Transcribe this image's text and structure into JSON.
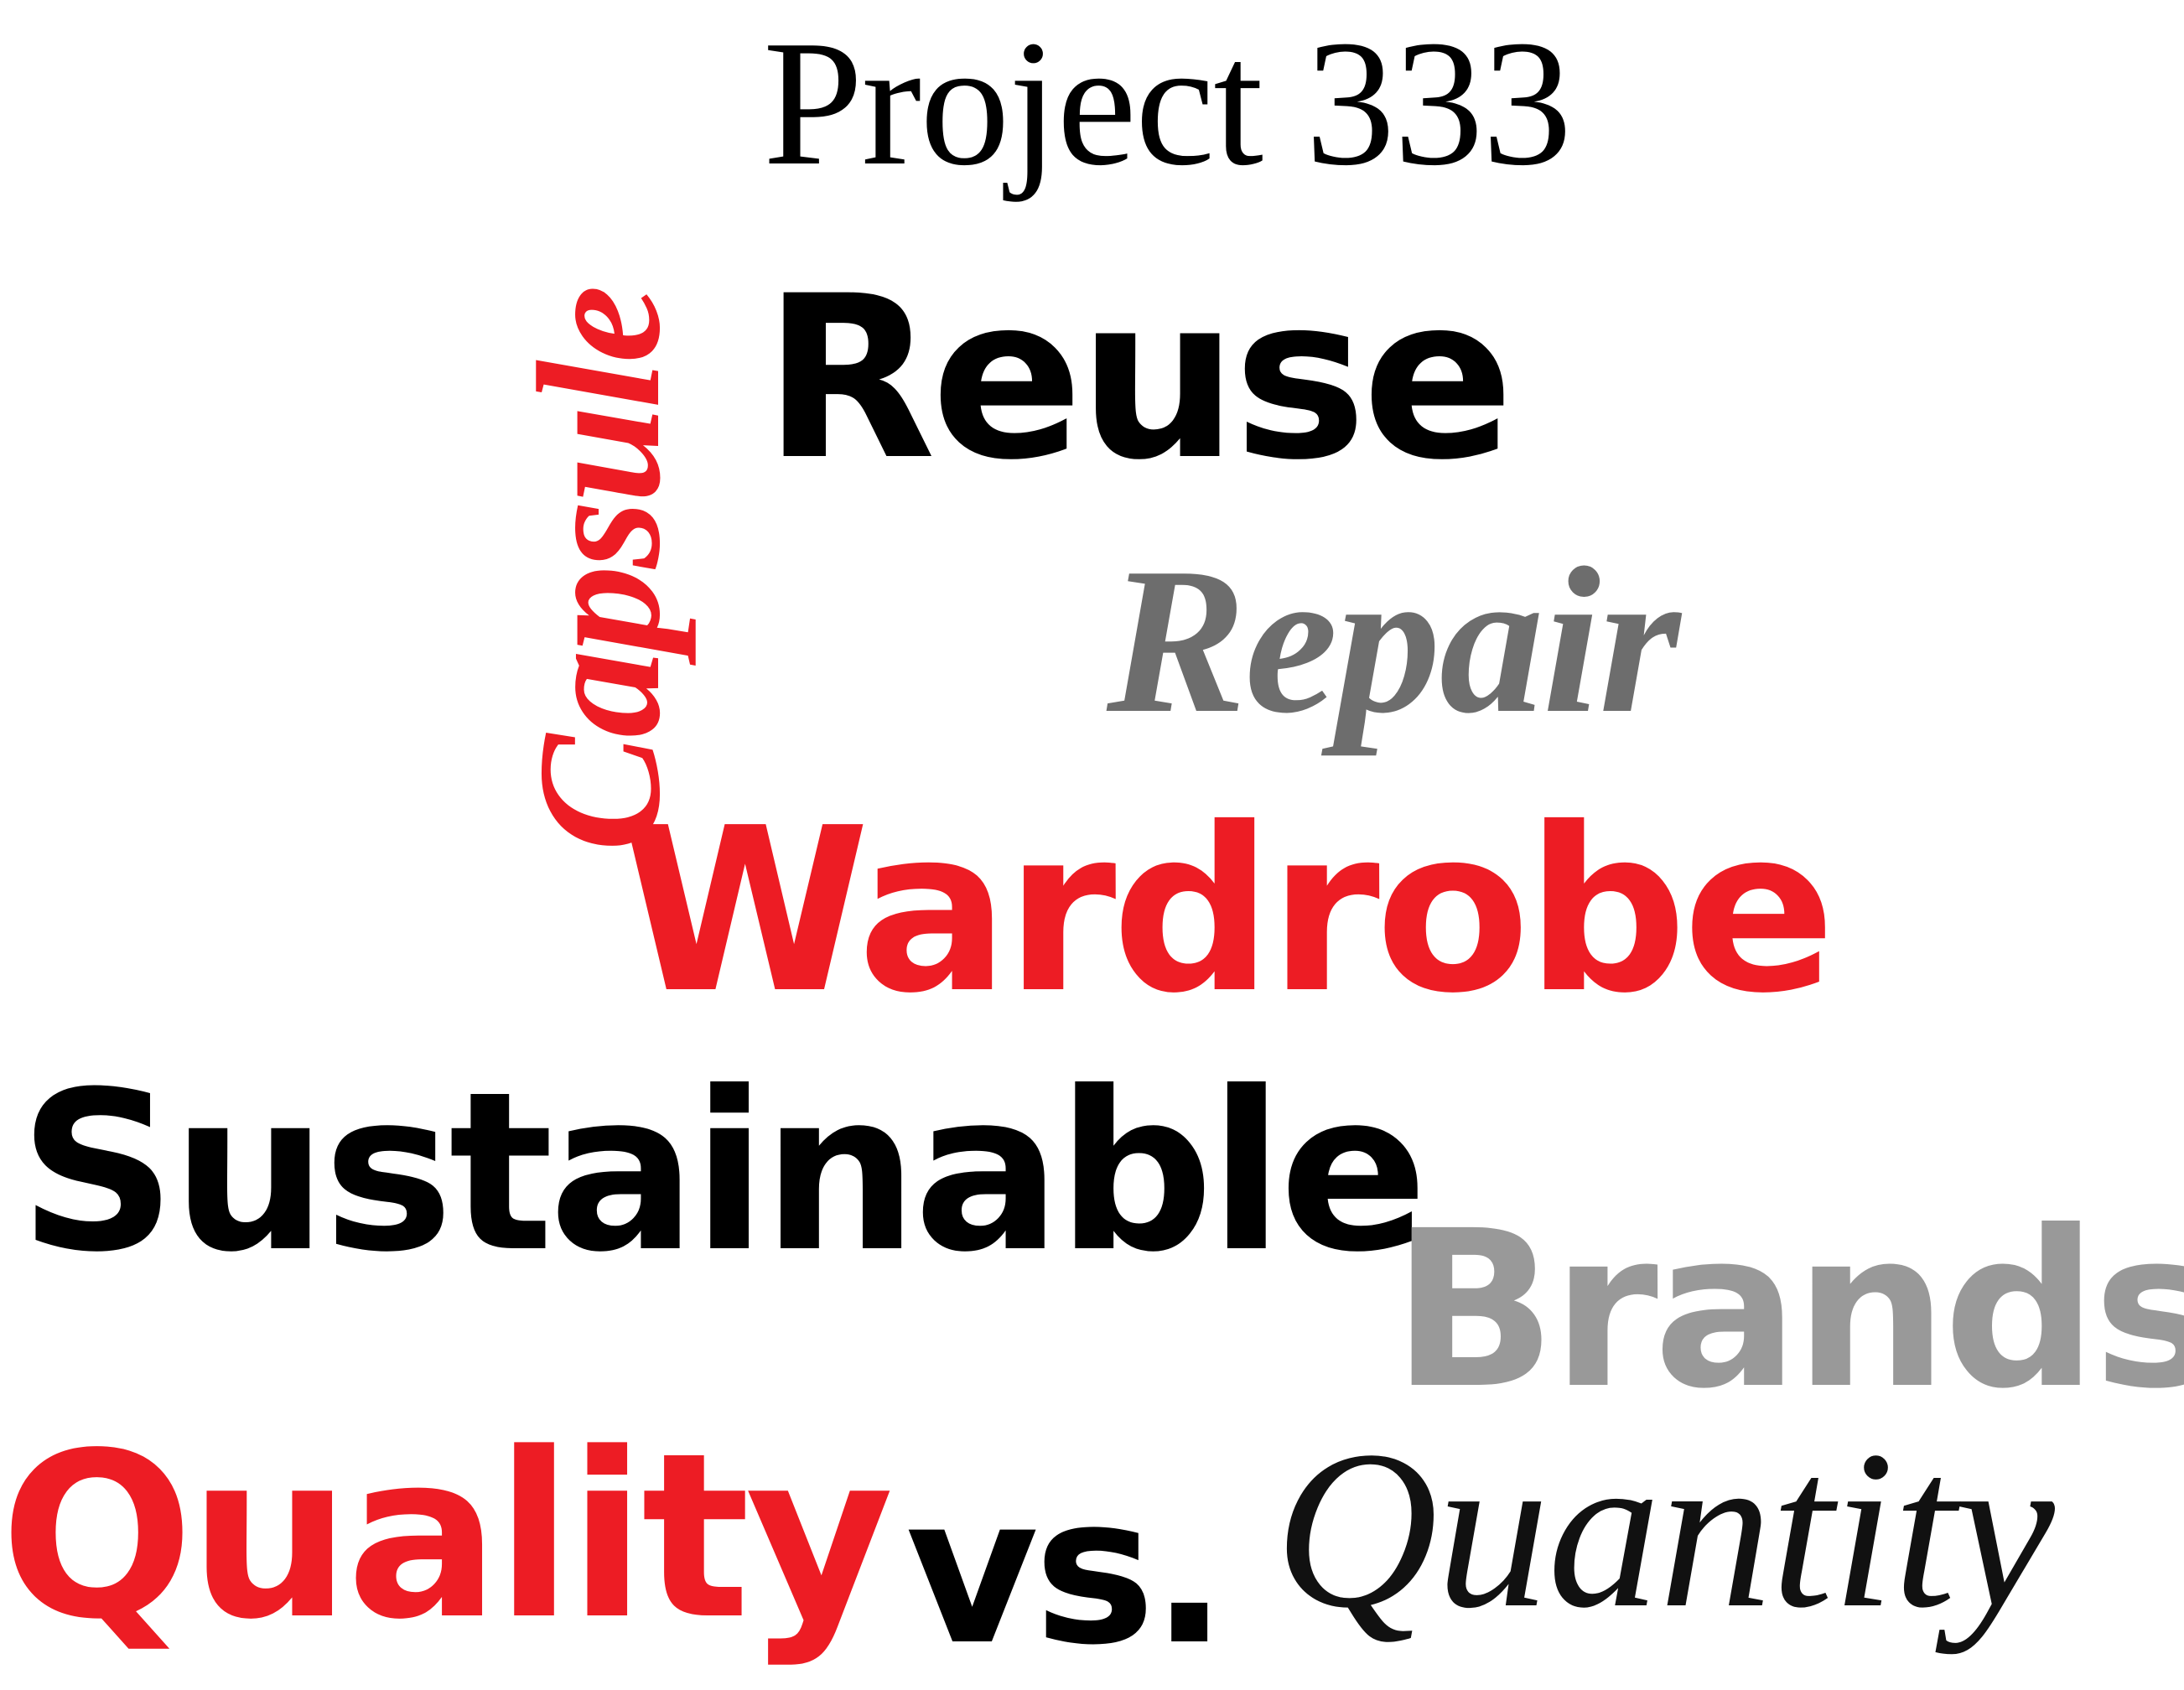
{
  "words": {
    "capsule": {
      "text": "Capsule",
      "color": "#ed1c24"
    },
    "project": {
      "text": "Project 333",
      "color": "#000000"
    },
    "reuse": {
      "text": "Reuse",
      "color": "#000000"
    },
    "repair": {
      "text": "Repair",
      "color": "#6d6d6d"
    },
    "wardrobe": {
      "text": "Wardrobe",
      "color": "#ed1c24"
    },
    "sustainable": {
      "text": "Sustainable",
      "color": "#000000"
    },
    "brands": {
      "text": "Brands",
      "color": "#999999"
    },
    "quality": {
      "text": "Quality",
      "color": "#ed1c24"
    },
    "vs": {
      "text": "vs.",
      "color": "#000000"
    },
    "quantity": {
      "text": "Quantity",
      "color": "#111111"
    }
  }
}
